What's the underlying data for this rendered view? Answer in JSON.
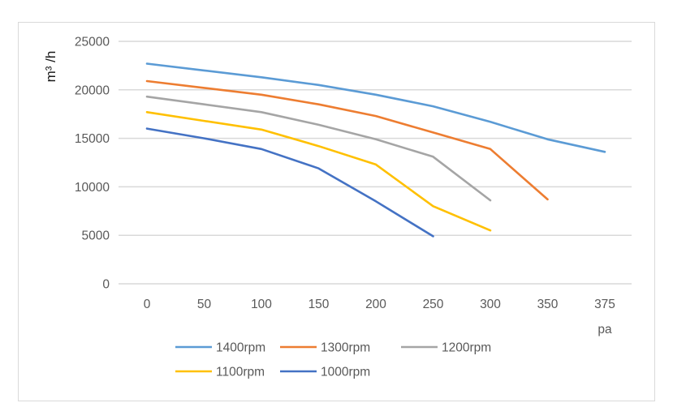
{
  "chart_data": {
    "type": "line",
    "title": "",
    "xlabel": "pa",
    "ylabel": "m³ /h",
    "categories": [
      "0",
      "50",
      "100",
      "150",
      "200",
      "250",
      "300",
      "350",
      "375"
    ],
    "yticks": [
      "0",
      "5000",
      "10000",
      "15000",
      "20000",
      "25000"
    ],
    "ylim": [
      0,
      25000
    ],
    "grid": "horizontal",
    "legend_position": "bottom",
    "series": [
      {
        "name": "1400rpm",
        "color": "#5b9bd5",
        "values": [
          22700,
          22000,
          21300,
          20500,
          19500,
          18300,
          16700,
          14900,
          13600
        ]
      },
      {
        "name": "1300rpm",
        "color": "#ed7d31",
        "values": [
          20900,
          20200,
          19500,
          18500,
          17300,
          15600,
          13900,
          8700,
          null
        ]
      },
      {
        "name": "1200rpm",
        "color": "#a5a5a5",
        "values": [
          19300,
          18500,
          17700,
          16400,
          14900,
          13100,
          8600,
          null,
          null
        ]
      },
      {
        "name": "1100rpm",
        "color": "#ffc000",
        "values": [
          17700,
          16800,
          15900,
          14200,
          12300,
          8000,
          5500,
          null,
          null
        ]
      },
      {
        "name": "1000rpm",
        "color": "#4472c4",
        "values": [
          16000,
          15000,
          13900,
          11900,
          8500,
          4900,
          null,
          null,
          null
        ]
      }
    ]
  }
}
